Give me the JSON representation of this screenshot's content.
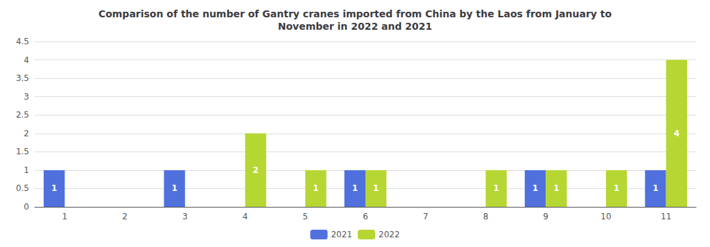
{
  "chart_data": {
    "type": "bar",
    "title": "Comparison of the number of Gantry cranes imported from China by the Laos from January to\nNovember in 2022 and 2021",
    "categories": [
      1,
      2,
      3,
      4,
      5,
      6,
      7,
      8,
      9,
      10,
      11
    ],
    "series": [
      {
        "name": "2021",
        "values": [
          1,
          null,
          1,
          null,
          null,
          1,
          null,
          null,
          1,
          null,
          1
        ]
      },
      {
        "name": "2022",
        "values": [
          null,
          null,
          null,
          2,
          1,
          1,
          null,
          1,
          1,
          1,
          4
        ]
      }
    ],
    "ylim": [
      0,
      4.5
    ],
    "yticks": [
      0,
      0.5,
      1,
      1.5,
      2,
      2.5,
      3,
      3.5,
      4,
      4.5
    ],
    "grid": true,
    "legend": "bottom",
    "data_labels": true
  }
}
